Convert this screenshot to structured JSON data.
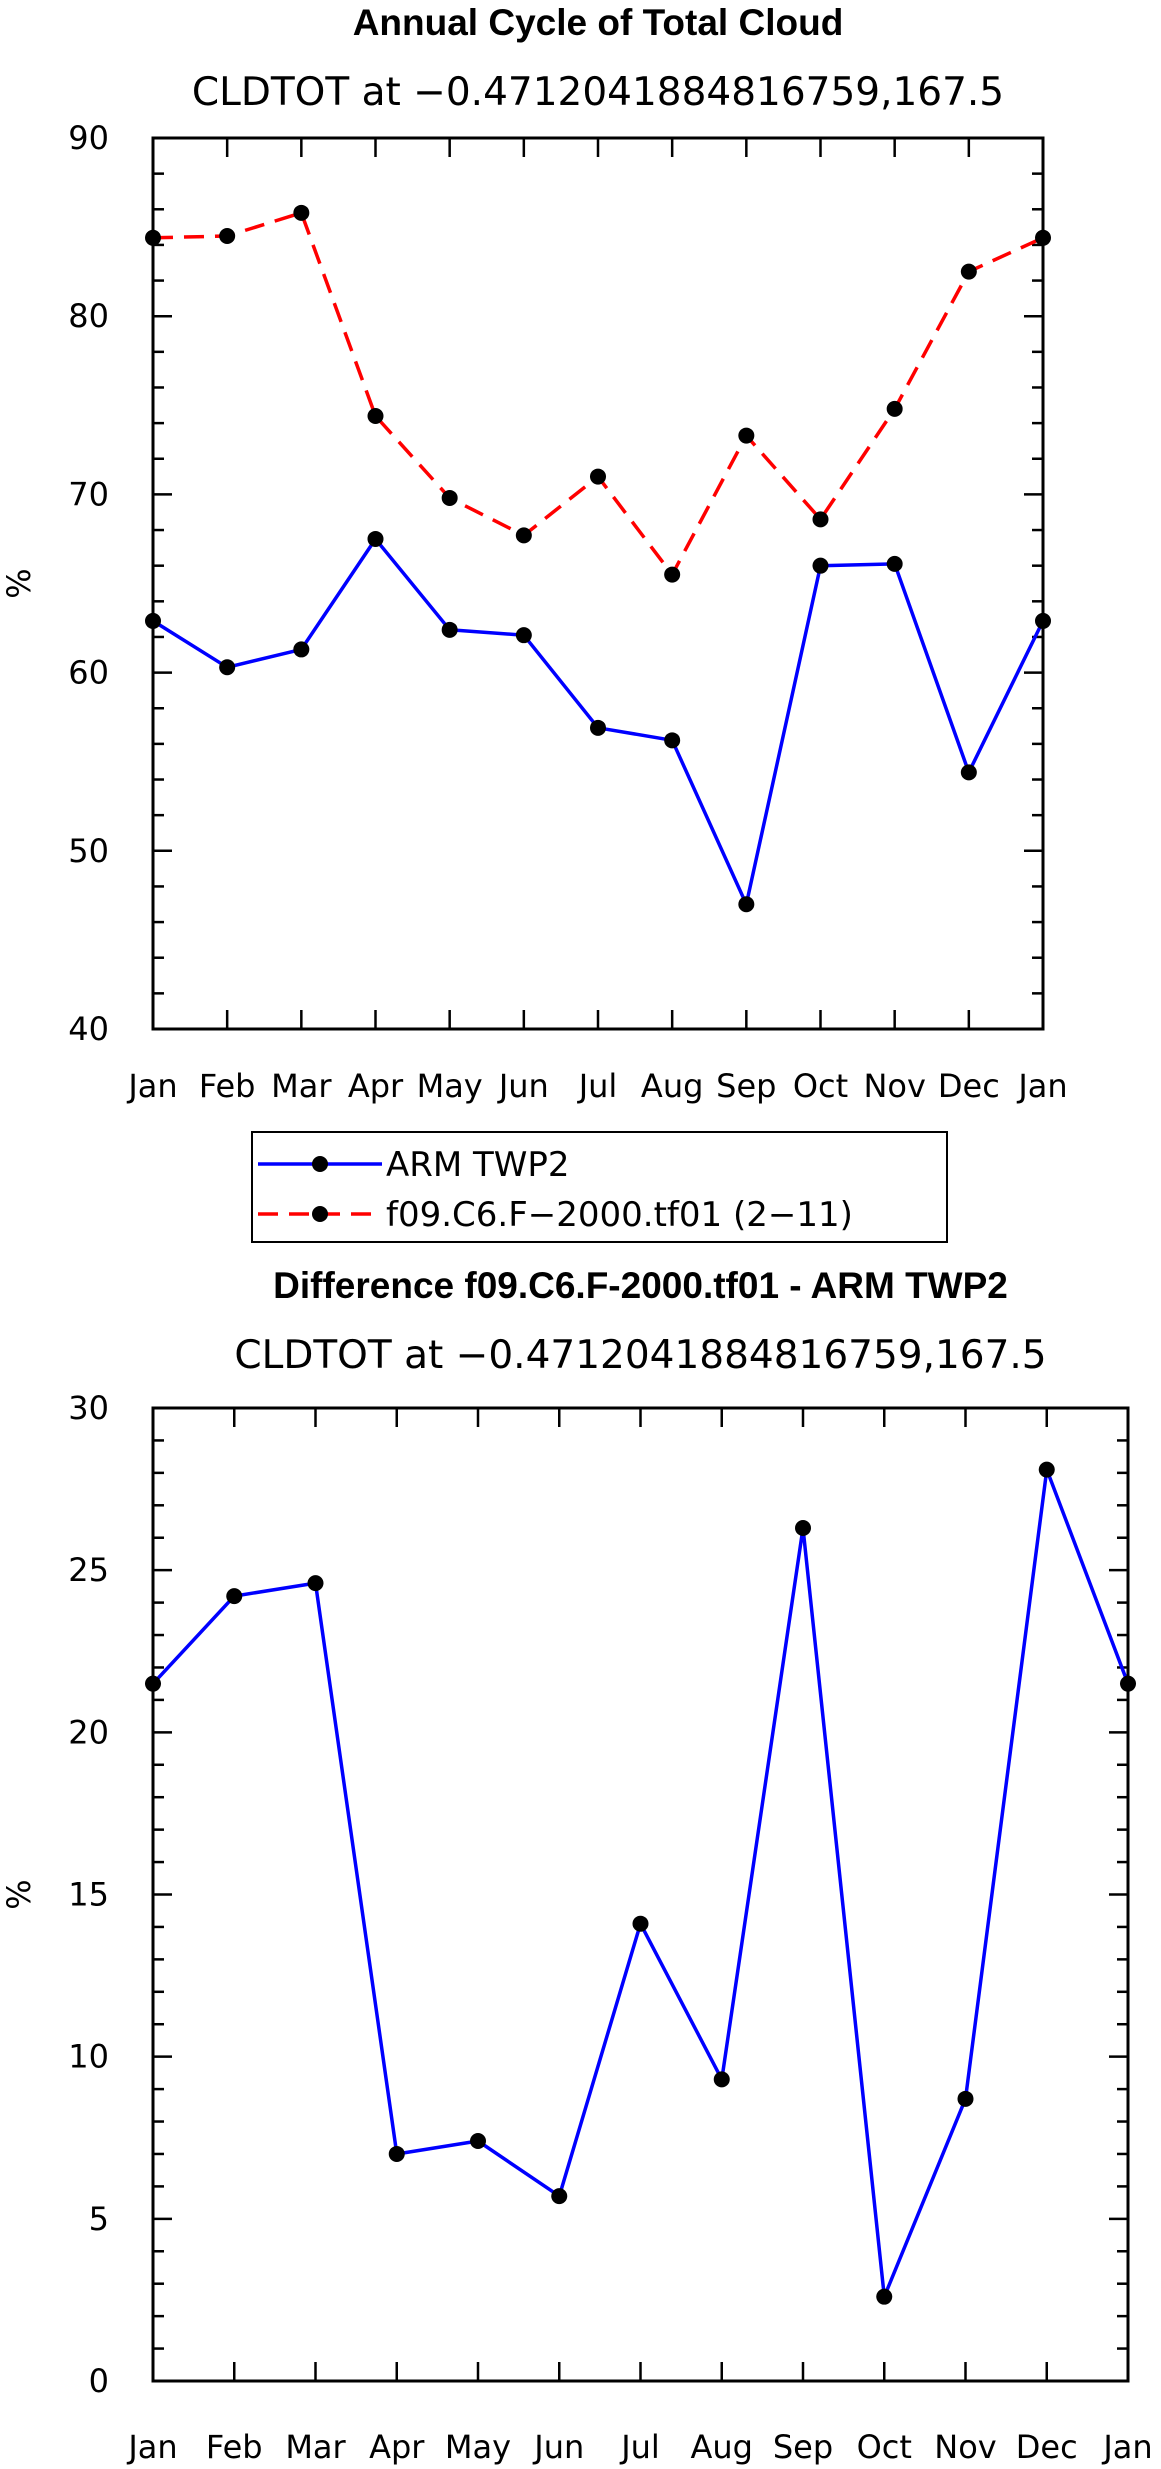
{
  "chart_data": [
    {
      "type": "line",
      "title": "Annual Cycle of Total Cloud",
      "subtitle": "CLDTOT at −0.4712041884816759,167.5",
      "ylabel": "%",
      "xlabel": "",
      "ylim": [
        40,
        90
      ],
      "yticks": [
        40,
        50,
        60,
        70,
        80,
        90
      ],
      "yminor_step": 2,
      "categories": [
        "Jan",
        "Feb",
        "Mar",
        "Apr",
        "May",
        "Jun",
        "Jul",
        "Aug",
        "Sep",
        "Oct",
        "Nov",
        "Dec",
        "Jan"
      ],
      "series": [
        {
          "name": "ARM TWP2",
          "color": "#0000ff",
          "dash": "solid",
          "values": [
            62.9,
            60.3,
            61.3,
            67.5,
            62.4,
            62.1,
            56.9,
            56.2,
            47.0,
            66.0,
            66.1,
            54.4,
            62.9
          ]
        },
        {
          "name": "f09.C6.F−2000.tf01 (2−11)",
          "color": "#ff0000",
          "dash": "dashed",
          "values": [
            84.4,
            84.5,
            85.8,
            74.4,
            69.8,
            67.7,
            71.0,
            65.5,
            73.3,
            68.6,
            74.8,
            82.5,
            84.4
          ]
        }
      ],
      "legend": "below",
      "grid": false
    },
    {
      "type": "line",
      "title": "Difference f09.C6.F-2000.tf01 - ARM TWP2",
      "subtitle": "CLDTOT at −0.4712041884816759,167.5",
      "ylabel": "%",
      "xlabel": "",
      "ylim": [
        0,
        30
      ],
      "yticks": [
        0,
        5,
        10,
        15,
        20,
        25,
        30
      ],
      "yminor_step": 1,
      "categories": [
        "Jan",
        "Feb",
        "Mar",
        "Apr",
        "May",
        "Jun",
        "Jul",
        "Aug",
        "Sep",
        "Oct",
        "Nov",
        "Dec",
        "Jan"
      ],
      "series": [
        {
          "name": "Difference",
          "color": "#0000ff",
          "dash": "solid",
          "values": [
            21.5,
            24.2,
            24.6,
            7.0,
            7.4,
            5.7,
            14.1,
            9.3,
            26.3,
            2.6,
            8.7,
            28.1,
            21.5
          ]
        }
      ],
      "grid": false
    }
  ]
}
